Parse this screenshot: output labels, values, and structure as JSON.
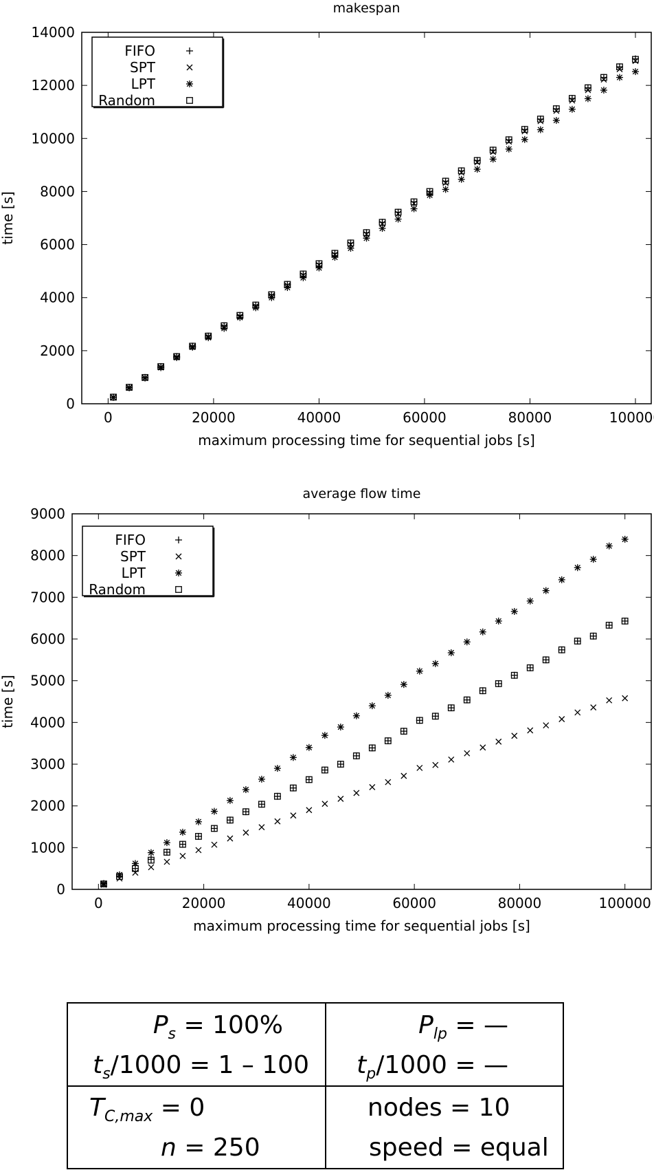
{
  "chart_data": [
    {
      "type": "scatter",
      "title": "makespan",
      "xlabel": "maximum processing time for sequential jobs [s]",
      "ylabel": "time [s]",
      "xlim": [
        -5000,
        103000
      ],
      "ylim": [
        0,
        14000
      ],
      "xticks": [
        0,
        20000,
        40000,
        60000,
        80000,
        100000
      ],
      "yticks": [
        0,
        2000,
        4000,
        6000,
        8000,
        10000,
        12000,
        14000
      ],
      "legend_position": "top-left",
      "x": [
        1000,
        4000,
        7000,
        10000,
        13000,
        16000,
        19000,
        22000,
        25000,
        28000,
        31000,
        34000,
        37000,
        40000,
        43000,
        46000,
        49000,
        52000,
        55000,
        58000,
        61000,
        64000,
        67000,
        70000,
        73000,
        76000,
        79000,
        82000,
        85000,
        88000,
        91000,
        94000,
        97000,
        100000
      ],
      "series": [
        {
          "name": "FIFO",
          "marker": "plus",
          "values": [
            250,
            620,
            990,
            1400,
            1780,
            2170,
            2550,
            2940,
            3330,
            3720,
            4110,
            4500,
            4890,
            5280,
            5670,
            6060,
            6450,
            6840,
            7220,
            7610,
            8000,
            8390,
            8780,
            9170,
            9560,
            9950,
            10340,
            10730,
            11120,
            11510,
            11910,
            12300,
            12700,
            13000
          ]
        },
        {
          "name": "SPT",
          "marker": "cross",
          "values": [
            240,
            610,
            980,
            1380,
            1760,
            2150,
            2530,
            2900,
            3290,
            3680,
            4070,
            4460,
            4840,
            5230,
            5620,
            6000,
            6390,
            6780,
            7160,
            7550,
            7940,
            8320,
            8710,
            9100,
            9490,
            9880,
            10270,
            10650,
            11040,
            11430,
            11820,
            12220,
            12610,
            12920
          ]
        },
        {
          "name": "LPT",
          "marker": "star",
          "values": [
            240,
            600,
            970,
            1360,
            1740,
            2130,
            2490,
            2840,
            3250,
            3620,
            4000,
            4380,
            4750,
            5120,
            5520,
            5860,
            6240,
            6610,
            6960,
            7350,
            7860,
            8080,
            8460,
            8840,
            9220,
            9600,
            9960,
            10330,
            10680,
            11100,
            11500,
            11820,
            12300,
            12520
          ]
        },
        {
          "name": "Random",
          "marker": "square",
          "values": [
            250,
            620,
            990,
            1400,
            1780,
            2170,
            2550,
            2940,
            3330,
            3720,
            4110,
            4500,
            4890,
            5280,
            5670,
            6060,
            6450,
            6840,
            7220,
            7610,
            8000,
            8390,
            8780,
            9170,
            9560,
            9950,
            10340,
            10730,
            11120,
            11510,
            11910,
            12300,
            12700,
            12980
          ]
        }
      ]
    },
    {
      "type": "scatter",
      "title": "average flow time",
      "xlabel": "maximum processing time for sequential jobs [s]",
      "ylabel": "time [s]",
      "xlim": [
        -5000,
        105000
      ],
      "ylim": [
        0,
        9000
      ],
      "xticks": [
        0,
        20000,
        40000,
        60000,
        80000,
        100000
      ],
      "yticks": [
        0,
        1000,
        2000,
        3000,
        4000,
        5000,
        6000,
        7000,
        8000,
        9000
      ],
      "legend_position": "top-left",
      "x": [
        1000,
        4000,
        7000,
        10000,
        13000,
        16000,
        19000,
        22000,
        25000,
        28000,
        31000,
        34000,
        37000,
        40000,
        43000,
        46000,
        49000,
        52000,
        55000,
        58000,
        61000,
        64000,
        67000,
        70000,
        73000,
        76000,
        79000,
        82000,
        85000,
        88000,
        91000,
        94000,
        97000,
        100000
      ],
      "series": [
        {
          "name": "FIFO",
          "marker": "plus",
          "values": [
            130,
            310,
            500,
            720,
            890,
            1080,
            1270,
            1460,
            1660,
            1860,
            2040,
            2230,
            2430,
            2630,
            2860,
            3000,
            3200,
            3390,
            3560,
            3790,
            4050,
            4150,
            4350,
            4540,
            4760,
            4930,
            5130,
            5310,
            5500,
            5740,
            5950,
            6070,
            6330,
            6430
          ]
        },
        {
          "name": "SPT",
          "marker": "cross",
          "values": [
            110,
            260,
            400,
            530,
            660,
            800,
            940,
            1070,
            1220,
            1360,
            1490,
            1630,
            1770,
            1900,
            2050,
            2170,
            2310,
            2450,
            2570,
            2720,
            2910,
            2980,
            3110,
            3260,
            3400,
            3540,
            3680,
            3810,
            3930,
            4080,
            4240,
            4360,
            4530,
            4580
          ]
        },
        {
          "name": "LPT",
          "marker": "star",
          "values": [
            140,
            350,
            620,
            880,
            1120,
            1370,
            1620,
            1870,
            2130,
            2390,
            2640,
            2900,
            3160,
            3400,
            3690,
            3890,
            4160,
            4400,
            4650,
            4910,
            5230,
            5410,
            5670,
            5930,
            6170,
            6430,
            6660,
            6910,
            7160,
            7420,
            7710,
            7910,
            8230,
            8390
          ]
        },
        {
          "name": "Random",
          "marker": "square",
          "values": [
            130,
            310,
            500,
            700,
            890,
            1080,
            1270,
            1460,
            1660,
            1860,
            2040,
            2230,
            2430,
            2630,
            2860,
            3000,
            3200,
            3390,
            3560,
            3790,
            4050,
            4150,
            4350,
            4540,
            4760,
            4930,
            5130,
            5310,
            5500,
            5740,
            5950,
            6070,
            6330,
            6430
          ]
        }
      ]
    }
  ],
  "parameters": {
    "row1": [
      {
        "symbol": "P",
        "sub": "s",
        "value": "100%"
      },
      {
        "symbol": "P",
        "sub": "lp",
        "value": "—"
      }
    ],
    "row2": [
      {
        "symbol": "t",
        "sub": "s",
        "rest": "/1000",
        "value": "1 – 100"
      },
      {
        "symbol": "t",
        "sub": "p",
        "rest": "/1000",
        "value": "—"
      }
    ],
    "row3": [
      {
        "symbol": "T",
        "sub": "C,max",
        "value": "0"
      },
      {
        "symbol": "nodes",
        "value": "10"
      }
    ],
    "row4": [
      {
        "symbol": "n",
        "value": "250"
      },
      {
        "symbol": "speed",
        "value": "equal"
      }
    ]
  }
}
